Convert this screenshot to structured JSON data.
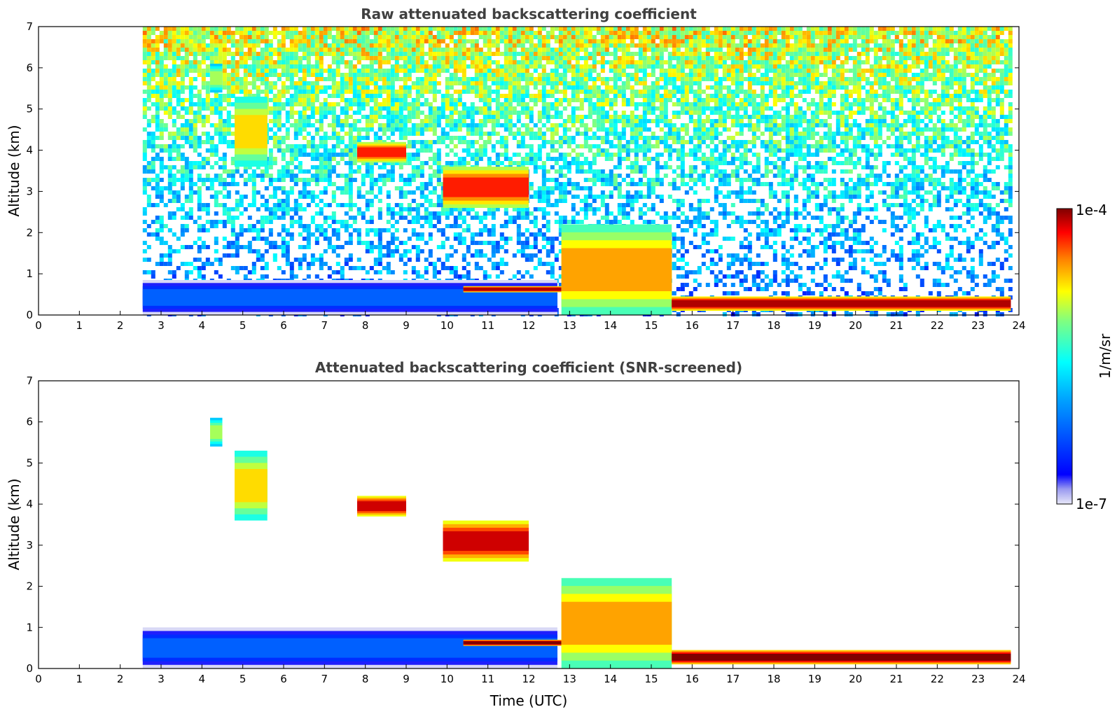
{
  "chart_data": [
    {
      "type": "heatmap",
      "title": "Raw attenuated backscattering coefficient",
      "xlabel": "",
      "ylabel": "Altitude (km)",
      "xlim": [
        0,
        24
      ],
      "ylim": [
        0,
        7
      ],
      "xticks": [
        0,
        1,
        2,
        3,
        4,
        5,
        6,
        7,
        8,
        9,
        10,
        11,
        12,
        13,
        14,
        15,
        16,
        17,
        18,
        19,
        20,
        21,
        22,
        23,
        24
      ],
      "yticks": [
        0,
        1,
        2,
        3,
        4,
        5,
        6,
        7
      ],
      "data_start_utc": 2.55,
      "data_end_utc": 23.8,
      "grid": false,
      "features": [
        {
          "start": 2.55,
          "end": 12.7,
          "base": 0.0,
          "top": 0.85,
          "level": 0.25
        },
        {
          "start": 10.4,
          "end": 12.8,
          "base": 0.55,
          "top": 0.7,
          "level": 0.97
        },
        {
          "start": 12.8,
          "end": 15.5,
          "base": 0.0,
          "top": 2.2,
          "level": 0.8
        },
        {
          "start": 15.5,
          "end": 23.8,
          "base": 0.1,
          "top": 0.45,
          "level": 0.97
        },
        {
          "start": 7.8,
          "end": 9.0,
          "base": 3.7,
          "top": 4.2,
          "level": 0.9
        },
        {
          "start": 9.9,
          "end": 12.0,
          "base": 2.6,
          "top": 3.6,
          "level": 0.9
        },
        {
          "start": 4.8,
          "end": 5.6,
          "base": 3.6,
          "top": 5.3,
          "level": 0.75
        },
        {
          "start": 4.2,
          "end": 4.5,
          "base": 5.4,
          "top": 6.1,
          "level": 0.65
        }
      ]
    },
    {
      "type": "heatmap",
      "title": "Attenuated backscattering coefficient (SNR-screened)",
      "xlabel": "Time (UTC)",
      "ylabel": "Altitude (km)",
      "xlim": [
        0,
        24
      ],
      "ylim": [
        0,
        7
      ],
      "xticks": [
        0,
        1,
        2,
        3,
        4,
        5,
        6,
        7,
        8,
        9,
        10,
        11,
        12,
        13,
        14,
        15,
        16,
        17,
        18,
        19,
        20,
        21,
        22,
        23,
        24
      ],
      "yticks": [
        0,
        1,
        2,
        3,
        4,
        5,
        6,
        7
      ],
      "data_start_utc": 2.55,
      "data_end_utc": 23.8,
      "grid": false,
      "features": [
        {
          "start": 2.55,
          "end": 12.7,
          "base": 0.0,
          "top": 1.0,
          "level": 0.25
        },
        {
          "start": 10.4,
          "end": 12.8,
          "base": 0.55,
          "top": 0.7,
          "level": 1.0
        },
        {
          "start": 12.8,
          "end": 15.5,
          "base": 0.0,
          "top": 2.2,
          "level": 0.8
        },
        {
          "start": 15.5,
          "end": 23.8,
          "base": 0.1,
          "top": 0.45,
          "level": 1.0
        },
        {
          "start": 7.8,
          "end": 9.0,
          "base": 3.7,
          "top": 4.2,
          "level": 0.95
        },
        {
          "start": 9.9,
          "end": 12.0,
          "base": 2.6,
          "top": 3.6,
          "level": 0.95
        },
        {
          "start": 4.8,
          "end": 5.6,
          "base": 3.6,
          "top": 5.3,
          "level": 0.75
        },
        {
          "start": 4.2,
          "end": 4.5,
          "base": 5.4,
          "top": 6.1,
          "level": 0.65
        }
      ]
    }
  ],
  "colorbar": {
    "label": "1/m/sr",
    "max_label": "1e-4",
    "min_label": "1e-7",
    "colormap": "jet",
    "colors": [
      "#e8e8f8",
      "#0000ff",
      "#00a0ff",
      "#00ffff",
      "#80ff80",
      "#ffff00",
      "#ff8000",
      "#ff0000",
      "#800000"
    ]
  }
}
